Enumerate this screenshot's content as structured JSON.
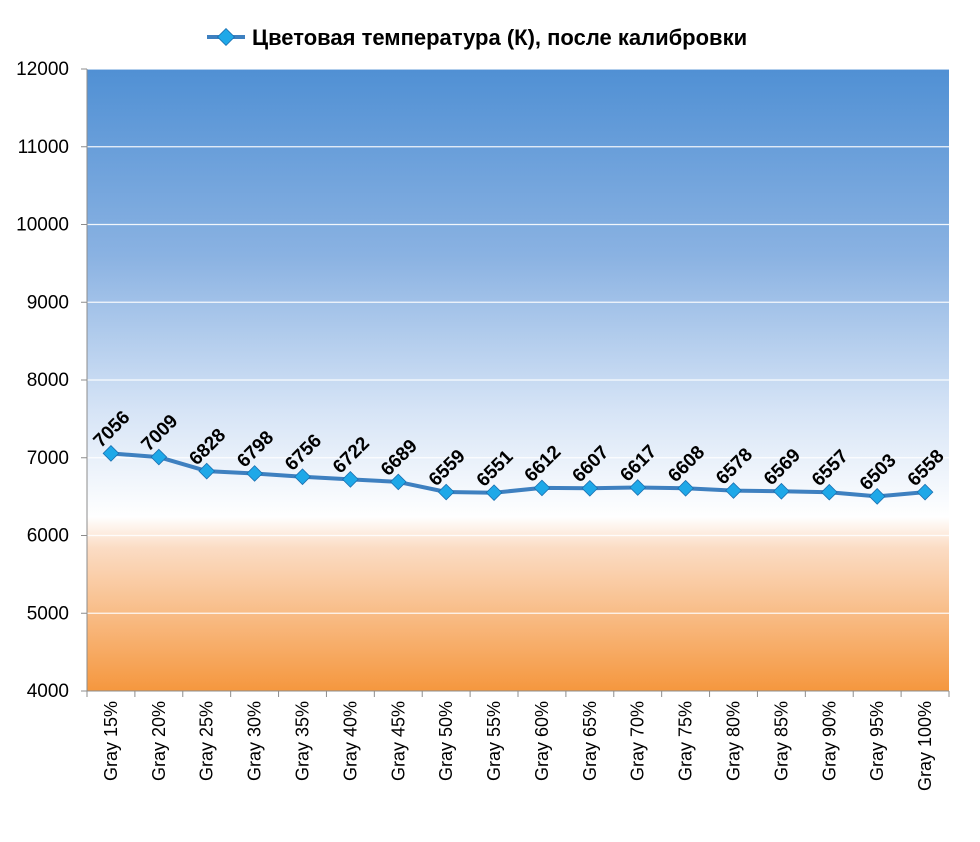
{
  "chart_data": {
    "type": "line",
    "title": "",
    "xlabel": "",
    "ylabel": "",
    "categories": [
      "Gray 15%",
      "Gray 20%",
      "Gray 25%",
      "Gray 30%",
      "Gray 35%",
      "Gray 40%",
      "Gray 45%",
      "Gray 50%",
      "Gray 55%",
      "Gray 60%",
      "Gray 65%",
      "Gray 70%",
      "Gray 75%",
      "Gray 80%",
      "Gray 85%",
      "Gray 90%",
      "Gray 95%",
      "Gray 100%"
    ],
    "series": [
      {
        "name": "Цветовая температура (К), после калибровки",
        "values": [
          7056,
          7009,
          6828,
          6798,
          6756,
          6722,
          6689,
          6559,
          6551,
          6612,
          6607,
          6617,
          6608,
          6578,
          6569,
          6557,
          6503,
          6558
        ],
        "color": "#3E80C0",
        "marker_color": "#1EA8E8"
      }
    ],
    "ylim": [
      4000,
      12000
    ],
    "yticks": [
      4000,
      5000,
      6000,
      7000,
      8000,
      9000,
      10000,
      11000,
      12000
    ],
    "grid": true,
    "legend_position": "top",
    "data_labels": true,
    "background": "gradient: blue (top) to white (~6000) to orange (bottom)"
  }
}
